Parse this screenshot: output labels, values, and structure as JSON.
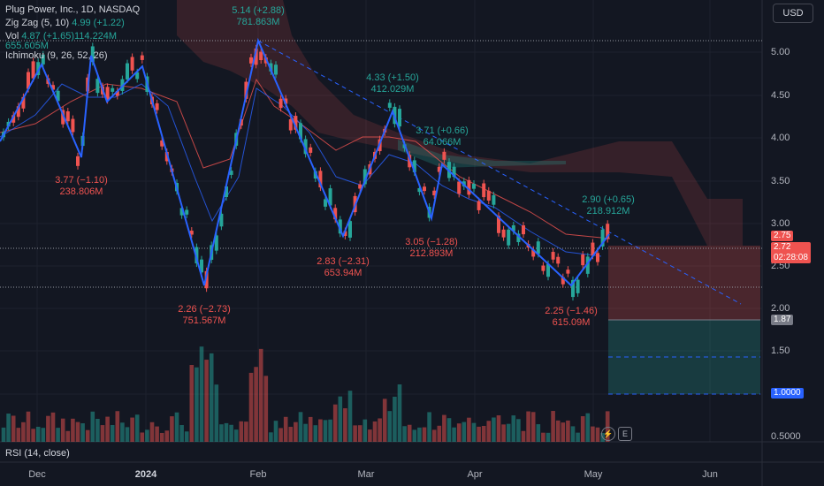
{
  "legend": {
    "line1": "Plug Power, Inc., 1D, NASDAQ",
    "line2": "Zig Zag (5, 10)",
    "line2_value": "4.99 (+1.22)",
    "line3": "Vol",
    "line3_value": "4.87 (+1.65)114.224M",
    "line3b": "655.605M",
    "line4": "Ichimoku (9, 26, 52, 26)"
  },
  "currency_button": "USD",
  "rsi_label": "RSI (14, close)",
  "y_axis": [
    "5.00",
    "4.50",
    "4.00",
    "3.50",
    "3.00",
    "2.50",
    "2.00",
    "1.50",
    "0.5000"
  ],
  "x_axis": [
    {
      "label": "Dec",
      "bold": false
    },
    {
      "label": "2024",
      "bold": true
    },
    {
      "label": "Feb",
      "bold": false
    },
    {
      "label": "Mar",
      "bold": false
    },
    {
      "label": "Apr",
      "bold": false
    },
    {
      "label": "May",
      "bold": false
    },
    {
      "label": "Jun",
      "bold": false
    }
  ],
  "price_tags": {
    "last": "2.75",
    "current": "2.72",
    "countdown": "02:28:08",
    "stop": "1.87",
    "target": "1.0000"
  },
  "annotations": [
    {
      "price": "5.14 (+2.88)",
      "volume": "781.863M",
      "color": "g"
    },
    {
      "price": "4.33 (+1.50)",
      "volume": "412.029M",
      "color": "g"
    },
    {
      "price": "3.71 (+0.66)",
      "volume": "64.066M",
      "color": "g"
    },
    {
      "price": "2.90 (+0.65)",
      "volume": "218.912M",
      "color": "g"
    },
    {
      "price": "3.77 (−1.10)",
      "volume": "238.806M",
      "color": "r"
    },
    {
      "price": "3.05 (−1.28)",
      "volume": "212.893M",
      "color": "r"
    },
    {
      "price": "2.83 (−2.31)",
      "volume": "653.94M",
      "color": "r"
    },
    {
      "price": "2.26 (−2.73)",
      "volume": "751.567M",
      "color": "r"
    },
    {
      "price": "2.25 (−1.46)",
      "volume": "615.09M",
      "color": "r"
    }
  ],
  "icons": {
    "flash": "flash-icon",
    "earnings": "E"
  },
  "colors": {
    "up": "#26a69a",
    "down": "#ef5350",
    "zigzag": "#2962ff",
    "bg": "#131722"
  }
}
